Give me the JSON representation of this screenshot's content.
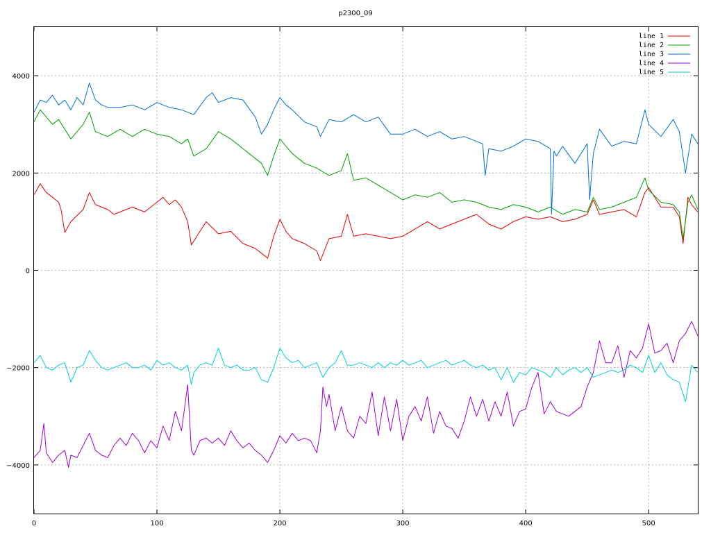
{
  "chart_data": {
    "type": "line",
    "title": "p2300_09",
    "xlabel": "",
    "ylabel": "",
    "xlim": [
      0,
      540
    ],
    "ylim": [
      -5000,
      5000
    ],
    "xticks": [
      0,
      100,
      200,
      300,
      400,
      500
    ],
    "yticks": [
      -4000,
      -2000,
      0,
      2000,
      4000
    ],
    "grid": true,
    "legend_position": "top-right",
    "series": [
      {
        "name": "line 1",
        "color": "#e00000",
        "x": [
          0,
          5,
          10,
          15,
          20,
          22,
          25,
          30,
          40,
          45,
          50,
          60,
          65,
          70,
          80,
          90,
          100,
          105,
          110,
          115,
          120,
          125,
          128,
          135,
          140,
          150,
          160,
          170,
          180,
          190,
          195,
          200,
          205,
          210,
          220,
          230,
          233,
          240,
          250,
          255,
          260,
          270,
          280,
          290,
          300,
          310,
          320,
          330,
          340,
          350,
          360,
          370,
          380,
          390,
          400,
          410,
          420,
          430,
          440,
          450,
          455,
          460,
          470,
          480,
          490,
          497,
          500,
          510,
          520,
          525,
          528,
          532,
          535,
          540
        ],
        "y": [
          1550,
          1780,
          1600,
          1500,
          1400,
          1250,
          780,
          1000,
          1250,
          1600,
          1350,
          1250,
          1150,
          1200,
          1300,
          1200,
          1400,
          1500,
          1350,
          1450,
          1300,
          1000,
          520,
          800,
          1000,
          750,
          800,
          550,
          450,
          250,
          700,
          1050,
          800,
          650,
          550,
          400,
          200,
          650,
          700,
          1150,
          700,
          750,
          700,
          650,
          700,
          850,
          1000,
          850,
          950,
          1050,
          1150,
          950,
          850,
          1000,
          1100,
          1050,
          1100,
          1000,
          1050,
          1150,
          1450,
          1150,
          1200,
          1250,
          1100,
          1600,
          1700,
          1300,
          1300,
          1100,
          550,
          1500,
          1350,
          1200
        ]
      },
      {
        "name": "line 2",
        "color": "#00a000",
        "x": [
          0,
          5,
          10,
          15,
          20,
          25,
          30,
          40,
          45,
          50,
          60,
          70,
          80,
          90,
          100,
          110,
          120,
          125,
          130,
          140,
          150,
          160,
          170,
          180,
          185,
          190,
          195,
          200,
          205,
          210,
          220,
          230,
          240,
          250,
          255,
          260,
          270,
          280,
          290,
          300,
          310,
          320,
          330,
          340,
          350,
          360,
          370,
          380,
          390,
          400,
          410,
          420,
          430,
          440,
          450,
          455,
          460,
          470,
          480,
          490,
          497,
          500,
          510,
          520,
          525,
          528,
          532,
          535,
          540
        ],
        "y": [
          3050,
          3300,
          3150,
          3000,
          3100,
          2900,
          2700,
          3000,
          3250,
          2850,
          2750,
          2900,
          2750,
          2900,
          2800,
          2750,
          2600,
          2700,
          2350,
          2500,
          2850,
          2700,
          2500,
          2300,
          2200,
          1950,
          2350,
          2700,
          2550,
          2400,
          2200,
          2100,
          1950,
          2050,
          2400,
          1850,
          1900,
          1750,
          1600,
          1450,
          1550,
          1500,
          1600,
          1400,
          1450,
          1400,
          1300,
          1250,
          1350,
          1300,
          1200,
          1300,
          1150,
          1250,
          1200,
          1500,
          1250,
          1300,
          1400,
          1500,
          1900,
          1650,
          1400,
          1350,
          1200,
          650,
          1400,
          1550,
          1250
        ]
      },
      {
        "name": "line 3",
        "color": "#0070d0",
        "x": [
          0,
          5,
          10,
          15,
          20,
          25,
          30,
          35,
          40,
          45,
          50,
          55,
          60,
          70,
          80,
          90,
          100,
          110,
          120,
          130,
          140,
          145,
          150,
          160,
          170,
          180,
          185,
          190,
          195,
          200,
          205,
          210,
          220,
          230,
          233,
          240,
          250,
          260,
          270,
          280,
          290,
          300,
          310,
          320,
          330,
          340,
          350,
          360,
          365,
          367,
          370,
          380,
          390,
          400,
          410,
          420,
          421,
          423,
          425,
          430,
          440,
          450,
          452,
          455,
          460,
          470,
          480,
          490,
          497,
          500,
          510,
          520,
          525,
          530,
          535,
          540
        ],
        "y": [
          3250,
          3500,
          3450,
          3600,
          3400,
          3500,
          3300,
          3550,
          3400,
          3850,
          3500,
          3400,
          3350,
          3350,
          3400,
          3300,
          3450,
          3350,
          3300,
          3200,
          3550,
          3650,
          3450,
          3550,
          3500,
          3150,
          2800,
          3000,
          3300,
          3550,
          3400,
          3300,
          3050,
          2950,
          2750,
          3100,
          3050,
          3200,
          3050,
          3150,
          2800,
          2800,
          2900,
          2750,
          2850,
          2700,
          2750,
          2650,
          2600,
          1950,
          2500,
          2450,
          2550,
          2700,
          2650,
          2500,
          1150,
          2450,
          2350,
          2550,
          2200,
          2600,
          1450,
          2400,
          2900,
          2550,
          2650,
          2600,
          3300,
          3000,
          2750,
          3100,
          2850,
          2000,
          2800,
          2600
        ]
      },
      {
        "name": "line 4",
        "color": "#a000d0",
        "x": [
          0,
          5,
          8,
          10,
          15,
          20,
          25,
          28,
          30,
          35,
          40,
          45,
          50,
          55,
          60,
          65,
          70,
          75,
          80,
          85,
          90,
          95,
          100,
          105,
          110,
          115,
          120,
          125,
          128,
          130,
          135,
          140,
          145,
          150,
          155,
          160,
          165,
          170,
          175,
          180,
          185,
          190,
          195,
          200,
          205,
          210,
          215,
          220,
          225,
          230,
          233,
          235,
          238,
          240,
          245,
          250,
          255,
          260,
          265,
          270,
          275,
          280,
          285,
          290,
          295,
          300,
          305,
          310,
          315,
          320,
          325,
          330,
          335,
          340,
          345,
          350,
          355,
          360,
          365,
          370,
          375,
          380,
          385,
          390,
          395,
          400,
          405,
          410,
          415,
          420,
          425,
          430,
          435,
          440,
          445,
          450,
          455,
          460,
          465,
          470,
          475,
          480,
          485,
          490,
          495,
          500,
          505,
          510,
          515,
          520,
          525,
          530,
          535,
          540
        ],
        "y": [
          -3850,
          -3700,
          -3150,
          -3750,
          -3950,
          -3800,
          -3700,
          -4050,
          -3800,
          -3850,
          -3600,
          -3350,
          -3700,
          -3800,
          -3850,
          -3600,
          -3450,
          -3600,
          -3350,
          -3500,
          -3750,
          -3500,
          -3650,
          -3200,
          -3500,
          -2900,
          -3300,
          -2350,
          -3700,
          -3800,
          -3500,
          -3450,
          -3550,
          -3450,
          -3600,
          -3300,
          -3500,
          -3650,
          -3550,
          -3700,
          -3800,
          -3950,
          -3700,
          -3400,
          -3550,
          -3350,
          -3500,
          -3450,
          -3500,
          -3750,
          -3300,
          -2400,
          -2800,
          -2550,
          -3300,
          -2800,
          -3300,
          -3450,
          -3000,
          -3150,
          -2500,
          -3400,
          -2600,
          -3300,
          -2650,
          -3500,
          -3000,
          -2800,
          -3100,
          -2600,
          -3350,
          -2900,
          -3200,
          -3250,
          -3450,
          -3100,
          -2600,
          -3000,
          -2650,
          -3100,
          -2700,
          -3000,
          -2500,
          -3200,
          -2900,
          -2850,
          -2400,
          -2100,
          -2950,
          -2700,
          -2900,
          -2950,
          -3000,
          -2900,
          -2800,
          -2400,
          -2100,
          -1450,
          -1900,
          -1900,
          -1550,
          -2200,
          -1650,
          -1800,
          -1600,
          -1100,
          -1700,
          -1650,
          -1500,
          -1900,
          -1450,
          -1300,
          -1050,
          -1350
        ]
      },
      {
        "name": "line 5",
        "color": "#00d0d0",
        "x": [
          0,
          5,
          10,
          15,
          20,
          25,
          30,
          35,
          40,
          45,
          50,
          55,
          60,
          65,
          70,
          75,
          80,
          85,
          90,
          95,
          100,
          105,
          110,
          115,
          120,
          125,
          128,
          130,
          135,
          140,
          145,
          150,
          155,
          160,
          165,
          170,
          175,
          180,
          185,
          190,
          195,
          200,
          205,
          210,
          215,
          220,
          225,
          230,
          235,
          240,
          245,
          250,
          255,
          260,
          265,
          270,
          275,
          280,
          285,
          290,
          295,
          300,
          305,
          310,
          315,
          320,
          325,
          330,
          335,
          340,
          345,
          350,
          355,
          360,
          365,
          370,
          375,
          380,
          385,
          390,
          395,
          400,
          405,
          410,
          415,
          420,
          425,
          430,
          435,
          440,
          445,
          450,
          455,
          460,
          465,
          470,
          475,
          480,
          485,
          490,
          495,
          500,
          505,
          510,
          515,
          520,
          525,
          530,
          535,
          540
        ],
        "y": [
          -1900,
          -1750,
          -2000,
          -2050,
          -1950,
          -1900,
          -2300,
          -2000,
          -1950,
          -1650,
          -1850,
          -2000,
          -2050,
          -2000,
          -1950,
          -1900,
          -2000,
          -2000,
          -1950,
          -2050,
          -1850,
          -1950,
          -1900,
          -2000,
          -2050,
          -1950,
          -2350,
          -2100,
          -1950,
          -1900,
          -1950,
          -1600,
          -1950,
          -2000,
          -1950,
          -2050,
          -2050,
          -2000,
          -2250,
          -2300,
          -2000,
          -1600,
          -1800,
          -1900,
          -1850,
          -2000,
          -1950,
          -1900,
          -2200,
          -2000,
          -1900,
          -1650,
          -1950,
          -1950,
          -1900,
          -1950,
          -2000,
          -1900,
          -2000,
          -1900,
          -1950,
          -1850,
          -1950,
          -1900,
          -1850,
          -2000,
          -1950,
          -1900,
          -1850,
          -1950,
          -1900,
          -1850,
          -1950,
          -2000,
          -1950,
          -2050,
          -2000,
          -2250,
          -2000,
          -2300,
          -2100,
          -2150,
          -2000,
          -2050,
          -2100,
          -2200,
          -2000,
          -2150,
          -2050,
          -2000,
          -2100,
          -2000,
          -2200,
          -2150,
          -2100,
          -2050,
          -2100,
          -2050,
          -1950,
          -2000,
          -2100,
          -1750,
          -2100,
          -1900,
          -2150,
          -2250,
          -2300,
          -2700,
          -1950,
          -2100
        ]
      }
    ]
  }
}
